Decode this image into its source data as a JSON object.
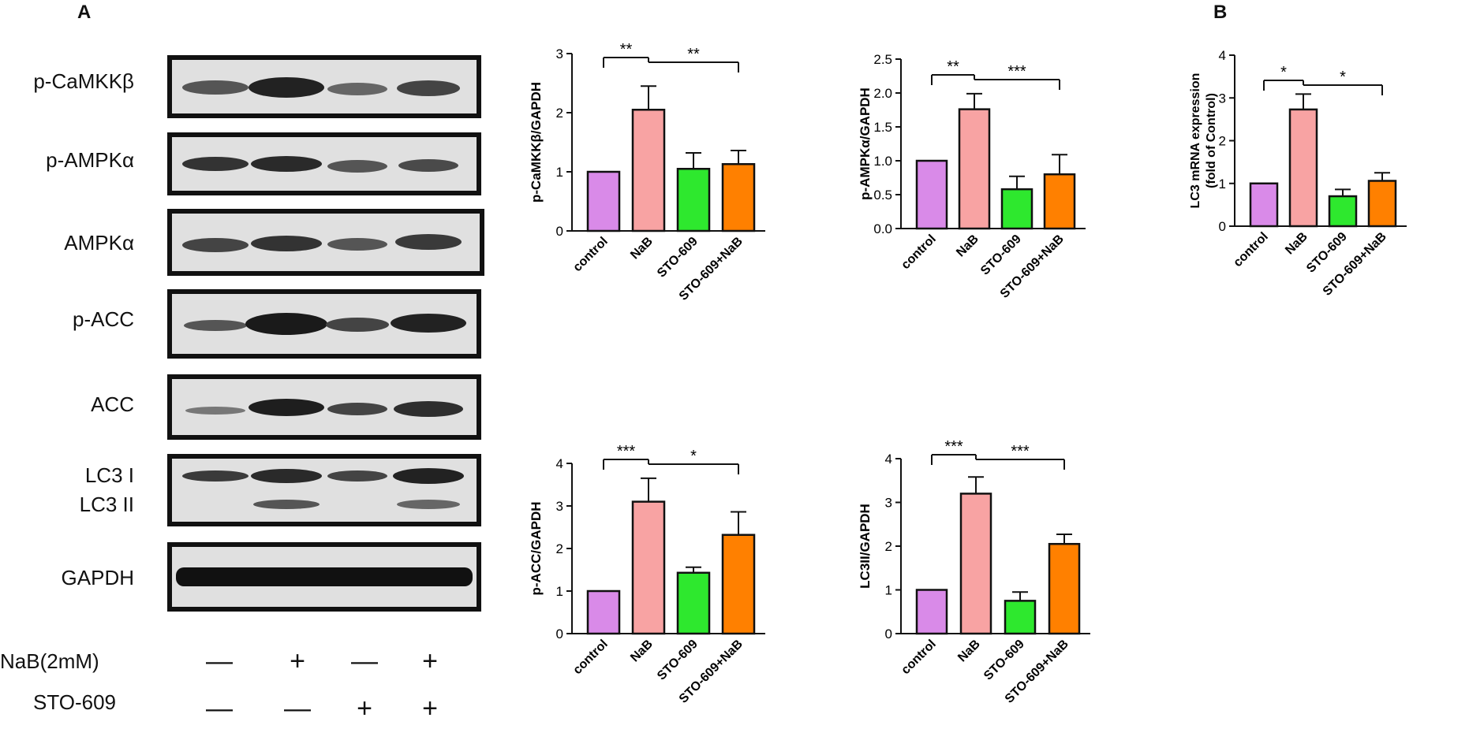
{
  "panels": {
    "a": "A",
    "b": "B"
  },
  "blot": {
    "labels": [
      "p-CaMKKβ",
      "p-AMPKα",
      "AMPKα",
      "p-ACC",
      "ACC",
      "LC3 I",
      "LC3 II",
      "GAPDH"
    ],
    "treatments": [
      {
        "label": "NaB(2mM)",
        "signs": [
          "—",
          "+",
          "—",
          "+"
        ]
      },
      {
        "label": "STO-609",
        "signs": [
          "—",
          "—",
          "+",
          "+"
        ]
      }
    ]
  },
  "colors": {
    "control": "#d98ae8",
    "NaB": "#f8a3a3",
    "STO-609": "#2ee82e",
    "STO-609+NaB": "#ff8000"
  },
  "chart_data": [
    {
      "type": "bar",
      "categories": [
        "control",
        "NaB",
        "STO-609",
        "STO-609+NaB"
      ],
      "values": [
        1.0,
        2.05,
        1.05,
        1.13
      ],
      "errors": [
        0,
        0.4,
        0.27,
        0.23
      ],
      "ylabel": "p-CaMKKβ/GAPDH",
      "ylim": [
        0,
        3
      ],
      "yticks": [
        "0",
        "1",
        "2",
        "3"
      ],
      "sig": [
        "**",
        "**"
      ]
    },
    {
      "type": "bar",
      "categories": [
        "control",
        "NaB",
        "STO-609",
        "STO-609+NaB"
      ],
      "values": [
        1.0,
        1.76,
        0.58,
        0.8
      ],
      "errors": [
        0,
        0.23,
        0.19,
        0.29
      ],
      "ylabel": "p-AMPKα/GAPDH",
      "ylim": [
        0,
        2.5
      ],
      "yticks": [
        "0.0",
        "0.5",
        "1.0",
        "1.5",
        "2.0",
        "2.5"
      ],
      "sig": [
        "**",
        "***"
      ]
    },
    {
      "type": "bar",
      "categories": [
        "control",
        "NaB",
        "STO-609",
        "STO-609+NaB"
      ],
      "values": [
        1.0,
        2.73,
        0.7,
        1.06
      ],
      "errors": [
        0,
        0.36,
        0.16,
        0.19
      ],
      "ylabel": "LC3 mRNA expression",
      "ylabel2": "(fold of Control)",
      "ylim": [
        0,
        4
      ],
      "yticks": [
        "0",
        "1",
        "2",
        "3",
        "4"
      ],
      "sig": [
        "*",
        "*"
      ]
    },
    {
      "type": "bar",
      "categories": [
        "control",
        "NaB",
        "STO-609",
        "STO-609+NaB"
      ],
      "values": [
        1.0,
        3.1,
        1.43,
        2.32
      ],
      "errors": [
        0,
        0.55,
        0.13,
        0.54
      ],
      "ylabel": "p-ACC/GAPDH",
      "ylim": [
        0,
        4
      ],
      "yticks": [
        "0",
        "1",
        "2",
        "3",
        "4"
      ],
      "sig": [
        "***",
        "*"
      ]
    },
    {
      "type": "bar",
      "categories": [
        "control",
        "NaB",
        "STO-609",
        "STO-609+NaB"
      ],
      "values": [
        1.0,
        3.2,
        0.75,
        2.05
      ],
      "errors": [
        0,
        0.38,
        0.2,
        0.22
      ],
      "ylabel": "LC3II/GAPDH",
      "ylim": [
        0,
        4
      ],
      "yticks": [
        "0",
        "1",
        "2",
        "3",
        "4"
      ],
      "sig": [
        "***",
        "***"
      ]
    }
  ]
}
